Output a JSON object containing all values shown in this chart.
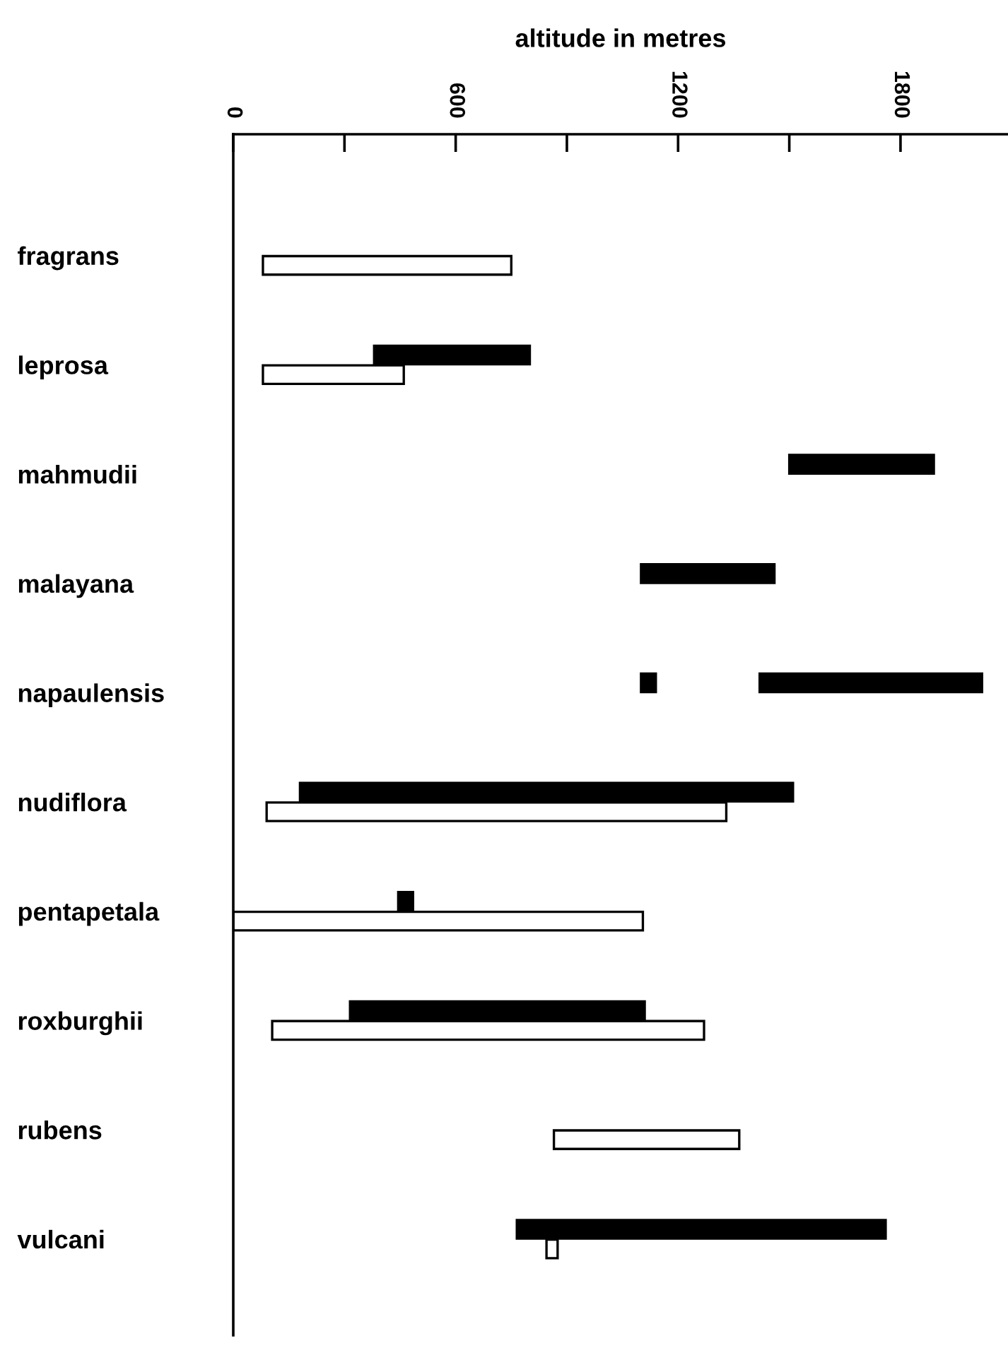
{
  "chart_data": {
    "type": "bar",
    "orientation": "horizontal",
    "xlabel": "altitude in metres",
    "categories": [
      "fragrans",
      "leprosa",
      "mahmudii",
      "malayana",
      "napaulensis",
      "nudiflora",
      "pentapetala",
      "roxburghii",
      "rubens",
      "vulcani"
    ],
    "series": [
      {
        "color": "#000000",
        "base": [
          null,
          380,
          1500,
          1100,
          1420,
          180,
          445,
          315,
          null,
          765
        ],
        "values": [
          null,
          420,
          390,
          360,
          600,
          1330,
          40,
          795,
          null,
          995
        ]
      },
      {
        "color": "#000000",
        "base": [
          null,
          null,
          null,
          null,
          1100,
          null,
          null,
          null,
          null,
          null
        ],
        "values": [
          null,
          null,
          null,
          null,
          40,
          null,
          null,
          null,
          null,
          null
        ]
      },
      {
        "color": "#ffffff",
        "base": [
          80,
          80,
          null,
          null,
          null,
          90,
          0,
          105,
          865,
          845
        ],
        "values": [
          670,
          380,
          null,
          null,
          null,
          1240,
          1105,
          1165,
          500,
          30
        ]
      }
    ],
    "xlim": [
      0,
      2090
    ],
    "xticks": [
      0,
      {
        "value": 300,
        "label": null
      },
      600,
      {
        "value": 900,
        "label": null
      },
      1200,
      {
        "value": 1500,
        "label": null
      },
      1800
    ],
    "grid": false
  }
}
